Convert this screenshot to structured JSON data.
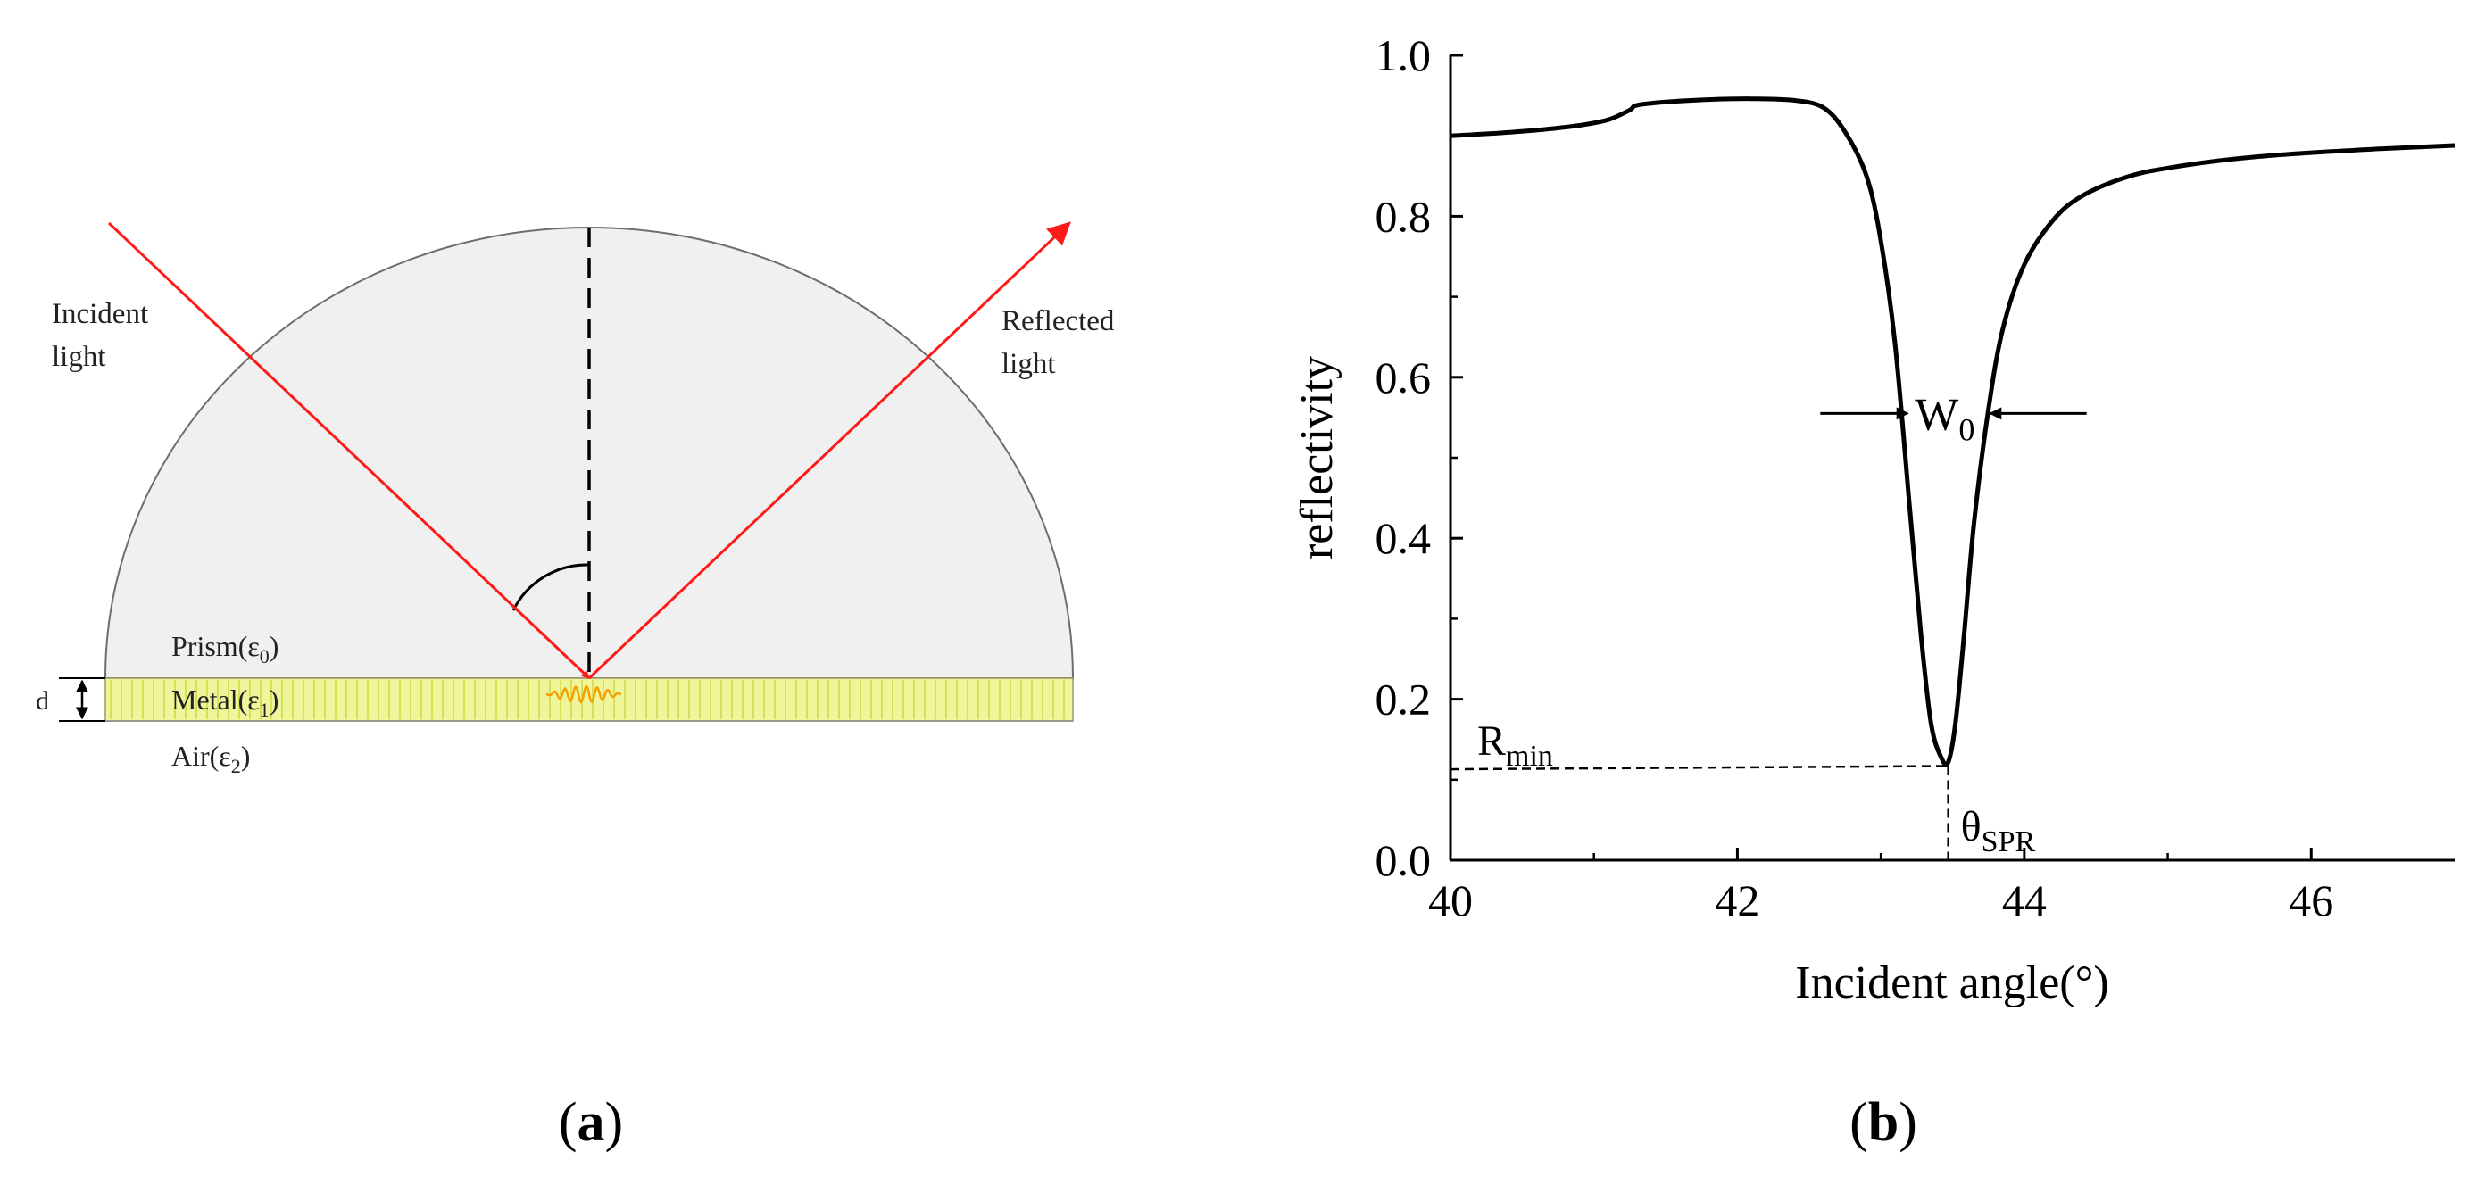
{
  "panel_a": {
    "caption": "a",
    "incident_label_line1": "Incident",
    "incident_label_line2": "light",
    "reflected_label_line1": "Reflected",
    "reflected_label_line2": "light",
    "prism_label": "Prism(ε",
    "prism_sub": "0",
    "metal_label": "Metal(ε",
    "metal_sub": "1",
    "air_label": "Air(ε",
    "air_sub": "2",
    "close_paren": ")",
    "thickness_label": "d",
    "colors": {
      "prism_fill": "#f0f0f0",
      "metal_fill": "#eef59a",
      "ray": "#ff1a1a",
      "wave": "#f5a000"
    }
  },
  "panel_b": {
    "caption": "b",
    "width_label_main": "W",
    "width_label_sub": "0",
    "rmin_main": "R",
    "rmin_sub": "min",
    "theta_main": "θ",
    "theta_sub": "SPR"
  },
  "chart_data": {
    "type": "line",
    "title": "",
    "xlabel": "Incident angle(°)",
    "ylabel": "reflectivity",
    "xlim": [
      40,
      47
    ],
    "ylim": [
      0,
      1.0
    ],
    "xticks": [
      "40",
      "42",
      "44",
      "46"
    ],
    "xtick_values": [
      40,
      42,
      44,
      46
    ],
    "yticks": [
      "0.0",
      "0.2",
      "0.4",
      "0.6",
      "0.8",
      "1.0"
    ],
    "ytick_values": [
      0.0,
      0.2,
      0.4,
      0.6,
      0.8,
      1.0
    ],
    "series": [
      {
        "x": [
          40.0,
          40.3,
          40.6,
          40.9,
          41.1,
          41.25,
          41.3,
          41.5,
          41.8,
          42.1,
          42.4,
          42.6,
          42.75,
          42.9,
          43.0,
          43.1,
          43.2,
          43.28,
          43.35,
          43.42,
          43.47,
          43.52,
          43.58,
          43.65,
          43.75,
          43.85,
          44.0,
          44.2,
          44.4,
          44.7,
          45.0,
          45.5,
          46.0,
          46.5,
          47.0
        ],
        "y": [
          0.9,
          0.903,
          0.907,
          0.913,
          0.92,
          0.932,
          0.938,
          0.942,
          0.945,
          0.946,
          0.944,
          0.935,
          0.905,
          0.85,
          0.77,
          0.64,
          0.44,
          0.28,
          0.17,
          0.128,
          0.122,
          0.17,
          0.28,
          0.42,
          0.56,
          0.66,
          0.74,
          0.795,
          0.825,
          0.848,
          0.86,
          0.872,
          0.879,
          0.884,
          0.888
        ]
      }
    ],
    "annotations": {
      "rmin_value": 0.113,
      "theta_spr": 43.47,
      "fwhm_level": 0.555,
      "fwhm_left": 43.2,
      "fwhm_right": 43.75
    },
    "grid": false,
    "legend": "none"
  }
}
